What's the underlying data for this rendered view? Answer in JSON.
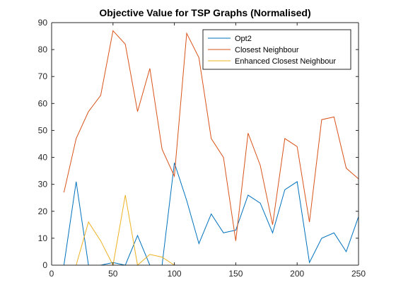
{
  "chart_data": {
    "type": "line",
    "title": "Objective Value for TSP Graphs (Normalised)",
    "xlabel": "",
    "ylabel": "",
    "xlim": [
      0,
      250
    ],
    "ylim": [
      0,
      90
    ],
    "xticks": [
      0,
      50,
      100,
      150,
      200,
      250
    ],
    "yticks": [
      0,
      10,
      20,
      30,
      40,
      50,
      60,
      70,
      80,
      90
    ],
    "grid": false,
    "legend_position": "top-right",
    "x": [
      10,
      20,
      30,
      40,
      50,
      60,
      70,
      80,
      90,
      100,
      110,
      120,
      130,
      140,
      150,
      160,
      170,
      180,
      190,
      200,
      210,
      220,
      230,
      240,
      250
    ],
    "series": [
      {
        "name": "Opt2",
        "color": "#0072BD",
        "values": [
          0,
          31,
          0,
          0,
          1,
          0,
          11,
          0,
          0,
          38,
          24,
          8,
          19,
          12,
          13,
          26,
          23,
          12,
          28,
          31,
          1,
          10,
          12,
          5,
          18
        ]
      },
      {
        "name": "Closest Neighbour",
        "color": "#D95319",
        "values": [
          27,
          47,
          57,
          63,
          87,
          82,
          57,
          73,
          43,
          33,
          86,
          77,
          47,
          40,
          9,
          49,
          37,
          15,
          47,
          44,
          16,
          54,
          55,
          36,
          32
        ]
      },
      {
        "name": "Enhanced Closest Neighbour",
        "color": "#EDB120",
        "values": [
          0,
          0,
          16,
          9,
          0,
          26,
          0,
          4,
          3,
          0,
          0,
          0,
          0,
          0,
          0,
          0,
          0,
          0,
          0,
          0,
          0,
          0,
          0,
          0,
          0
        ]
      }
    ]
  }
}
